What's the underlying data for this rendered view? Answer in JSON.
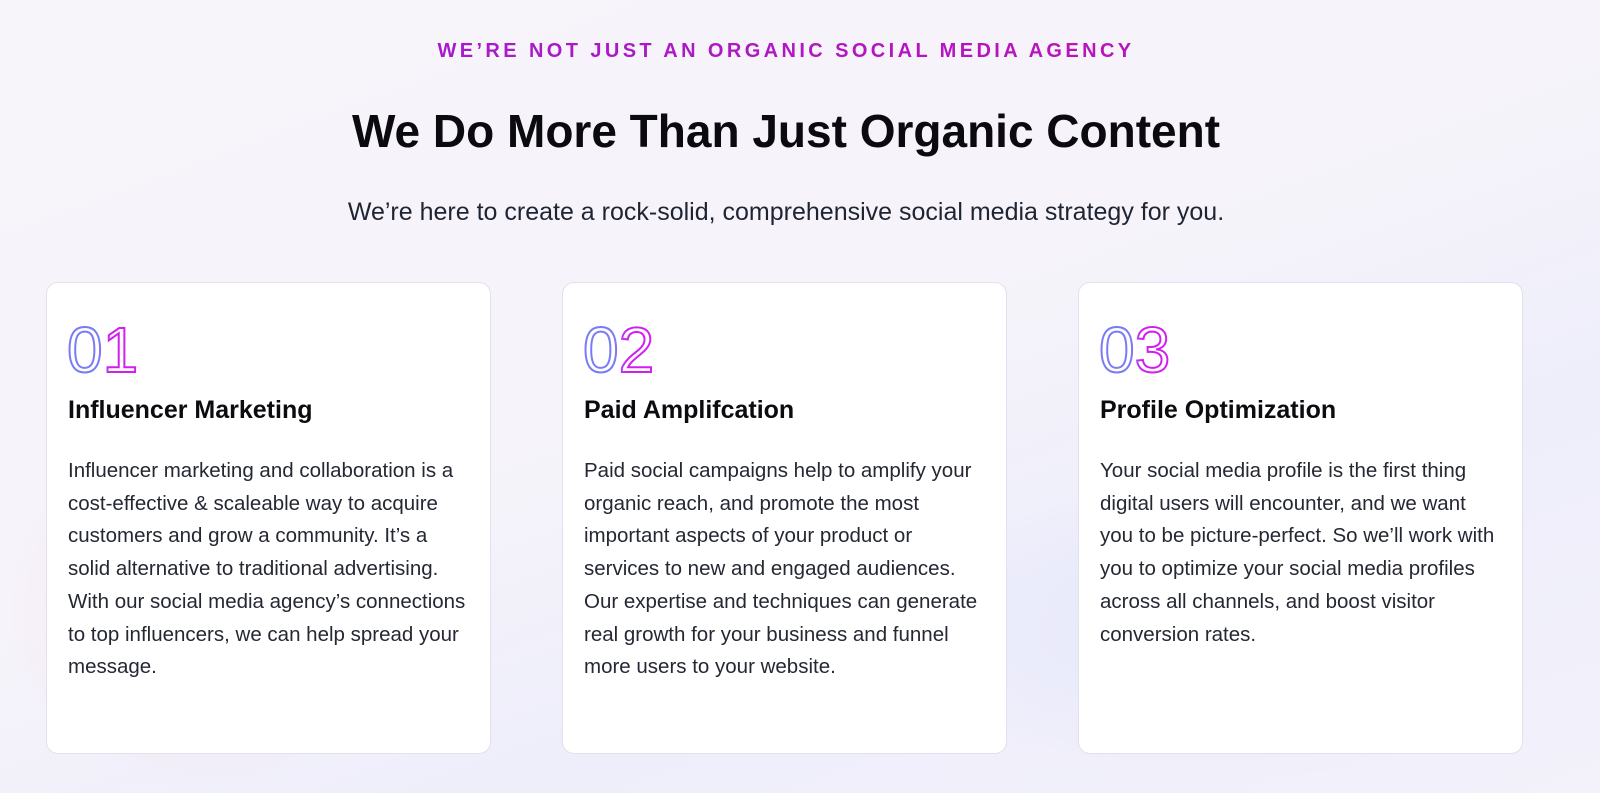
{
  "header": {
    "eyebrow": "WE’RE NOT JUST AN ORGANIC SOCIAL MEDIA AGENCY",
    "title": "We Do More Than Just Organic Content",
    "subtitle": "We’re here to create a rock-solid, comprehensive social media strategy for you."
  },
  "colors": {
    "gradient_start": "#7b7cf5",
    "gradient_end": "#d21ff0",
    "eyebrow": "#b414c4"
  },
  "cards": [
    {
      "number": "01",
      "title": "Influencer Marketing",
      "body": "Influencer marketing and collaboration is a cost-effective & scaleable way to acquire customers and grow a community. It’s a solid alternative to traditional advertising. With our social media agency’s connections to top influencers, we can help spread your message."
    },
    {
      "number": "02",
      "title": "Paid Amplifcation",
      "body": "Paid social campaigns help to amplify your organic reach, and promote the most important aspects of your product or services to new and engaged audiences. Our expertise and techniques can generate real growth for your business and funnel more users to your website."
    },
    {
      "number": "03",
      "title": "Profile Optimization",
      "body": "Your social media profile is the first thing digital users will encounter, and we want you to be picture-perfect. So we’ll work with you to optimize your social media profiles across all channels, and boost visitor conversion rates."
    }
  ]
}
